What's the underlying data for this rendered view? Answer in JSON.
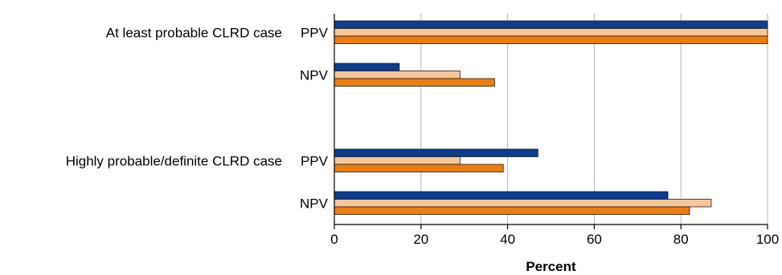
{
  "chart_data": {
    "type": "bar",
    "orientation": "horizontal",
    "xlabel": "Percent",
    "xlim": [
      0,
      100
    ],
    "xticks": [
      0,
      20,
      40,
      60,
      80,
      100
    ],
    "grid": true,
    "groups": [
      {
        "label": "At least probable CLRD case",
        "rows": [
          {
            "label": "PPV",
            "values": [
              100,
              100,
              100
            ]
          },
          {
            "label": "NPV",
            "values": [
              15,
              29,
              37
            ]
          }
        ]
      },
      {
        "label": "Highly probable/definite CLRD case",
        "rows": [
          {
            "label": "PPV",
            "values": [
              47,
              29,
              39
            ]
          },
          {
            "label": "NPV",
            "values": [
              77,
              87,
              82
            ]
          }
        ]
      }
    ],
    "series": [
      {
        "color": "#0b3d91"
      },
      {
        "color": "#f7c79a"
      },
      {
        "color": "#ee7d0f"
      }
    ]
  }
}
